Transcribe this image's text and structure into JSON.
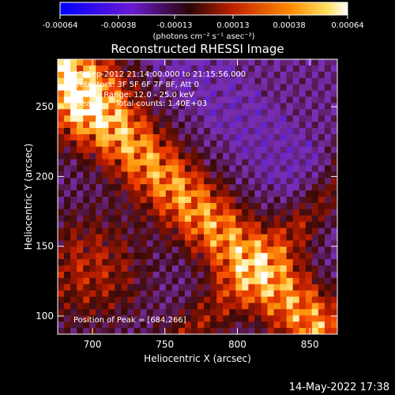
{
  "chart_data": {
    "type": "heatmap",
    "title": "Reconstructed RHESSI Image",
    "xlabel": "Heliocentric X (arcsec)",
    "ylabel": "Heliocentric Y (arcsec)",
    "xlim": [
      676,
      869
    ],
    "ylim": [
      87,
      284
    ],
    "x_ticks": [
      700,
      750,
      800,
      850
    ],
    "y_ticks": [
      100,
      150,
      200,
      250
    ],
    "x_tick_labels": [
      "700",
      "750",
      "800",
      "850"
    ],
    "y_tick_labels": [
      "100",
      "150",
      "200",
      "250"
    ],
    "colorbar": {
      "min": -0.00064,
      "max": 0.00064,
      "ticks": [
        -0.00064,
        -0.00038,
        -0.00013,
        0.00013,
        0.00038,
        0.00064
      ],
      "tick_labels": [
        "-0.00064",
        "-0.00038",
        "-0.00013",
        "0.00013",
        "0.00038",
        "0.00064"
      ],
      "units_label": "(photons cm⁻² s⁻¹ asec⁻²)"
    },
    "annotations": {
      "time_range": "25-Sep-2012 21:14:00.000 to 21:15:56.000",
      "detectors": "Detectors: 3F 5F 6F 7F 8F, Att 0",
      "energy": "Energy Range: 12.0 - 25.0 keV",
      "algorithm": "Clean",
      "counts": "Total counts: 1.40E+03",
      "peak_label": "Position of Peak = [684,266]"
    },
    "peak": {
      "x": 684,
      "y": 266
    },
    "colormap": [
      "#1010ff",
      "#5a20d8",
      "#7a2fb0",
      "#3a0a08",
      "#b01a00",
      "#f04000",
      "#ff9c10",
      "#ffe070",
      "#ffffff"
    ]
  },
  "footer": {
    "date": "14-May-2022 17:38"
  }
}
